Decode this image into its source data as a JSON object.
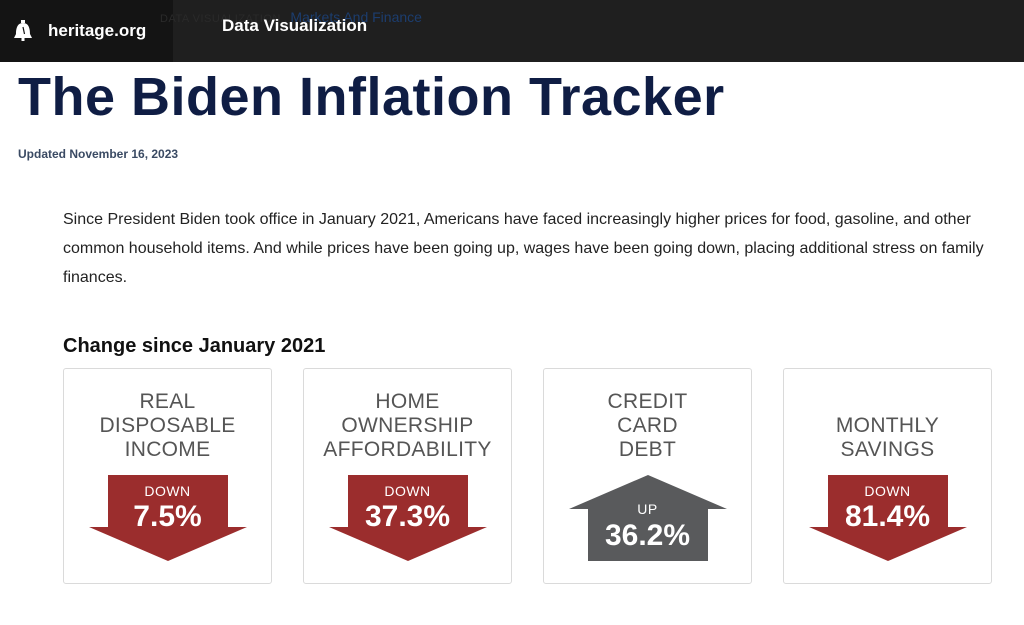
{
  "header": {
    "site": "heritage.org",
    "nav_title": "Data Visualization",
    "breadcrumb_category": "DATA VISUALIZATION",
    "breadcrumb_separator": ",",
    "breadcrumb_link": "Markets And Finance"
  },
  "page": {
    "title": "The Biden Inflation Tracker",
    "updated": "Updated November 16, 2023",
    "intro": "Since President Biden took office in January 2021, Americans have faced increasingly higher prices for food, gasoline, and other common household items. And while prices have been going up, wages have been going down, placing additional stress on family finances.",
    "section_title": "Change since January 2021"
  },
  "colors": {
    "down_arrow": "#9b2d2d",
    "up_arrow": "#595a5c",
    "title": "#0f1d44"
  },
  "metrics": [
    {
      "label_lines": [
        "REAL",
        "DISPOSABLE",
        "INCOME"
      ],
      "direction": "DOWN",
      "value": "7.5%"
    },
    {
      "label_lines": [
        "HOME",
        "OWNERSHIP",
        "AFFORDABILITY"
      ],
      "direction": "DOWN",
      "value": "37.3%"
    },
    {
      "label_lines": [
        "CREDIT",
        "CARD",
        "DEBT"
      ],
      "direction": "UP",
      "value": "36.2%"
    },
    {
      "label_lines": [
        "MONTHLY",
        "SAVINGS"
      ],
      "direction": "DOWN",
      "value": "81.4%"
    }
  ]
}
